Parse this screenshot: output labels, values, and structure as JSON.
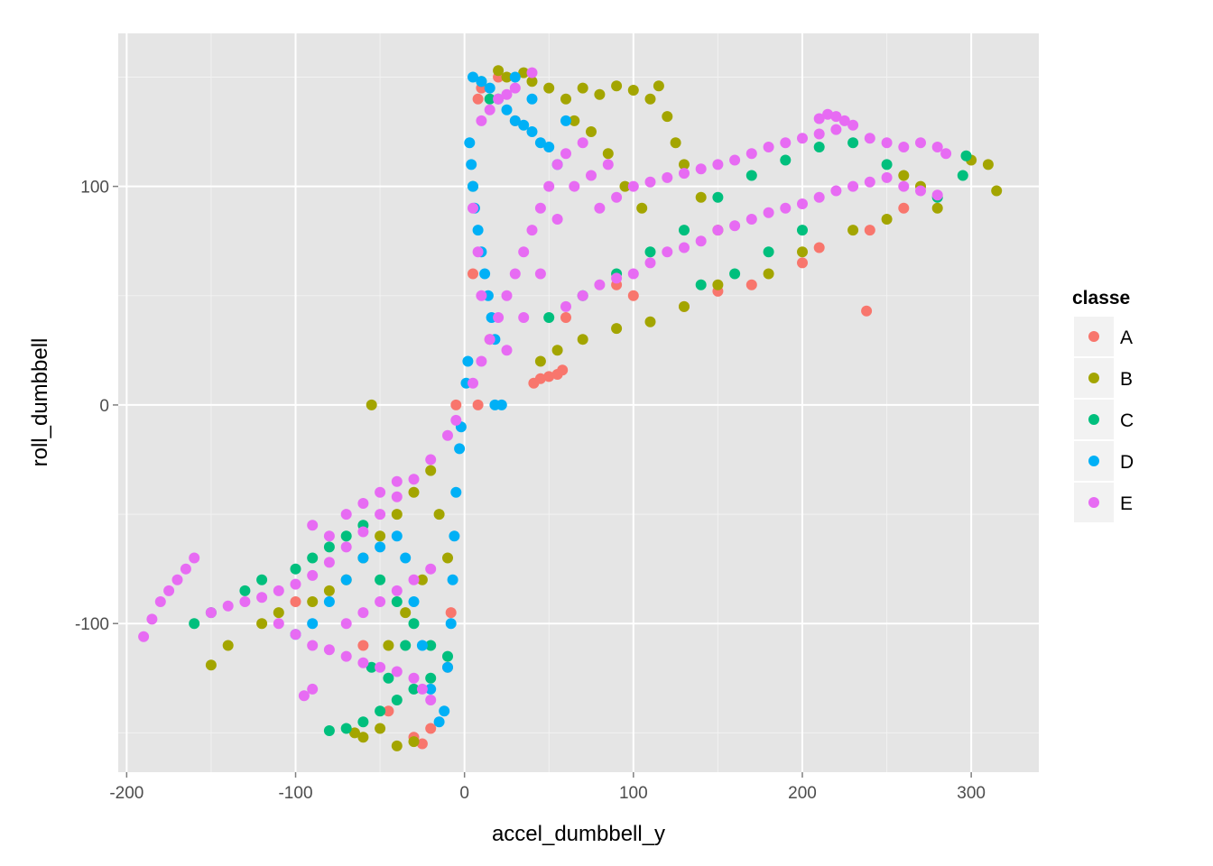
{
  "chart_data": {
    "type": "scatter",
    "title": "",
    "xlabel": "accel_dumbbell_y",
    "ylabel": "roll_dumbbell",
    "xlim": [
      -205,
      340
    ],
    "ylim": [
      -168,
      170
    ],
    "x_ticks": [
      -200,
      -100,
      0,
      100,
      200,
      300
    ],
    "x_tick_labels": [
      "-200",
      "-100",
      "0",
      "100",
      "200",
      "300"
    ],
    "y_ticks": [
      -100,
      0,
      100
    ],
    "y_tick_labels": [
      "-100",
      "0",
      "100"
    ],
    "grid": true,
    "legend": {
      "title": "classe",
      "position": "right",
      "entries": [
        {
          "label": "A",
          "color": "#F8766D"
        },
        {
          "label": "B",
          "color": "#A3A500"
        },
        {
          "label": "C",
          "color": "#00BF7D"
        },
        {
          "label": "D",
          "color": "#00B0F6"
        },
        {
          "label": "E",
          "color": "#E76BF3"
        }
      ]
    },
    "colors": {
      "panel_background": "#E5E5E5",
      "grid_major": "#FFFFFF",
      "grid_minor": "#F2F2F2"
    },
    "series": [
      {
        "name": "A",
        "color": "#F8766D",
        "points": [
          [
            238,
            43
          ],
          [
            41,
            10
          ],
          [
            45,
            12
          ],
          [
            50,
            13
          ],
          [
            55,
            14
          ],
          [
            58,
            16
          ],
          [
            10,
            145
          ],
          [
            8,
            140
          ],
          [
            20,
            150
          ],
          [
            30,
            130
          ],
          [
            5,
            60
          ],
          [
            15,
            30
          ],
          [
            -5,
            0
          ],
          [
            8,
            0
          ],
          [
            -25,
            -155
          ],
          [
            -30,
            -152
          ],
          [
            -20,
            -148
          ],
          [
            -45,
            -140
          ],
          [
            -10,
            -120
          ],
          [
            -8,
            -95
          ],
          [
            -60,
            -110
          ],
          [
            -100,
            -90
          ],
          [
            60,
            40
          ],
          [
            90,
            55
          ],
          [
            130,
            45
          ],
          [
            170,
            55
          ],
          [
            210,
            72
          ],
          [
            240,
            80
          ],
          [
            260,
            90
          ],
          [
            100,
            50
          ],
          [
            150,
            52
          ],
          [
            200,
            65
          ]
        ]
      },
      {
        "name": "B",
        "color": "#A3A500",
        "points": [
          [
            -55,
            0
          ],
          [
            315,
            98
          ],
          [
            310,
            110
          ],
          [
            300,
            112
          ],
          [
            280,
            90
          ],
          [
            270,
            100
          ],
          [
            260,
            105
          ],
          [
            250,
            85
          ],
          [
            230,
            80
          ],
          [
            200,
            70
          ],
          [
            180,
            60
          ],
          [
            150,
            55
          ],
          [
            130,
            45
          ],
          [
            110,
            38
          ],
          [
            90,
            35
          ],
          [
            70,
            30
          ],
          [
            55,
            25
          ],
          [
            45,
            20
          ],
          [
            60,
            140
          ],
          [
            70,
            145
          ],
          [
            80,
            142
          ],
          [
            90,
            146
          ],
          [
            100,
            144
          ],
          [
            110,
            140
          ],
          [
            115,
            146
          ],
          [
            120,
            132
          ],
          [
            125,
            120
          ],
          [
            130,
            110
          ],
          [
            140,
            95
          ],
          [
            150,
            80
          ],
          [
            20,
            153
          ],
          [
            25,
            150
          ],
          [
            35,
            152
          ],
          [
            40,
            148
          ],
          [
            50,
            145
          ],
          [
            65,
            130
          ],
          [
            75,
            125
          ],
          [
            85,
            115
          ],
          [
            95,
            100
          ],
          [
            105,
            90
          ],
          [
            -60,
            -152
          ],
          [
            -65,
            -150
          ],
          [
            -50,
            -148
          ],
          [
            -40,
            -156
          ],
          [
            -30,
            -154
          ],
          [
            -150,
            -119
          ],
          [
            -140,
            -110
          ],
          [
            -120,
            -100
          ],
          [
            -110,
            -95
          ],
          [
            -90,
            -90
          ],
          [
            -80,
            -85
          ],
          [
            -70,
            -80
          ],
          [
            -60,
            -70
          ],
          [
            -50,
            -60
          ],
          [
            -40,
            -50
          ],
          [
            -30,
            -40
          ],
          [
            -20,
            -30
          ],
          [
            -15,
            -50
          ],
          [
            -10,
            -70
          ],
          [
            -25,
            -80
          ],
          [
            -35,
            -95
          ],
          [
            -45,
            -110
          ]
        ]
      },
      {
        "name": "C",
        "color": "#00BF7D",
        "points": [
          [
            297,
            114
          ],
          [
            295,
            105
          ],
          [
            280,
            95
          ],
          [
            250,
            110
          ],
          [
            230,
            120
          ],
          [
            210,
            118
          ],
          [
            190,
            112
          ],
          [
            170,
            105
          ],
          [
            150,
            95
          ],
          [
            130,
            80
          ],
          [
            110,
            70
          ],
          [
            90,
            60
          ],
          [
            70,
            50
          ],
          [
            50,
            40
          ],
          [
            200,
            80
          ],
          [
            180,
            70
          ],
          [
            160,
            60
          ],
          [
            140,
            55
          ],
          [
            -80,
            -149
          ],
          [
            -70,
            -148
          ],
          [
            -60,
            -145
          ],
          [
            -50,
            -140
          ],
          [
            -40,
            -135
          ],
          [
            -30,
            -130
          ],
          [
            -20,
            -125
          ],
          [
            -160,
            -100
          ],
          [
            -150,
            -95
          ],
          [
            -130,
            -85
          ],
          [
            -120,
            -80
          ],
          [
            -100,
            -75
          ],
          [
            -90,
            -70
          ],
          [
            -80,
            -65
          ],
          [
            -70,
            -60
          ],
          [
            -60,
            -55
          ],
          [
            -50,
            -80
          ],
          [
            -40,
            -90
          ],
          [
            -30,
            -100
          ],
          [
            -20,
            -110
          ],
          [
            -10,
            -115
          ],
          [
            -55,
            -120
          ],
          [
            -45,
            -125
          ],
          [
            -35,
            -110
          ],
          [
            10,
            148
          ],
          [
            15,
            140
          ],
          [
            5,
            100
          ]
        ]
      },
      {
        "name": "D",
        "color": "#00B0F6",
        "points": [
          [
            18,
            0
          ],
          [
            22,
            0
          ],
          [
            5,
            150
          ],
          [
            10,
            148
          ],
          [
            15,
            145
          ],
          [
            20,
            140
          ],
          [
            25,
            135
          ],
          [
            30,
            130
          ],
          [
            35,
            128
          ],
          [
            40,
            125
          ],
          [
            45,
            120
          ],
          [
            50,
            118
          ],
          [
            55,
            110
          ],
          [
            3,
            120
          ],
          [
            4,
            110
          ],
          [
            5,
            100
          ],
          [
            6,
            90
          ],
          [
            8,
            80
          ],
          [
            10,
            70
          ],
          [
            12,
            60
          ],
          [
            14,
            50
          ],
          [
            16,
            40
          ],
          [
            18,
            30
          ],
          [
            2,
            20
          ],
          [
            1,
            10
          ],
          [
            -2,
            -10
          ],
          [
            -3,
            -20
          ],
          [
            -5,
            -40
          ],
          [
            -6,
            -60
          ],
          [
            -7,
            -80
          ],
          [
            -8,
            -100
          ],
          [
            -10,
            -120
          ],
          [
            -12,
            -140
          ],
          [
            -15,
            -145
          ],
          [
            -20,
            -130
          ],
          [
            -25,
            -110
          ],
          [
            -30,
            -90
          ],
          [
            -35,
            -70
          ],
          [
            -40,
            -60
          ],
          [
            -50,
            -65
          ],
          [
            -60,
            -70
          ],
          [
            -70,
            -80
          ],
          [
            -80,
            -90
          ],
          [
            -90,
            -100
          ],
          [
            -100,
            -105
          ],
          [
            60,
            130
          ],
          [
            40,
            140
          ],
          [
            30,
            150
          ]
        ]
      },
      {
        "name": "E",
        "color": "#E76BF3",
        "points": [
          [
            -190,
            -106
          ],
          [
            -185,
            -98
          ],
          [
            -180,
            -90
          ],
          [
            -175,
            -85
          ],
          [
            -170,
            -80
          ],
          [
            -165,
            -75
          ],
          [
            -160,
            -70
          ],
          [
            -150,
            -95
          ],
          [
            -140,
            -92
          ],
          [
            -130,
            -90
          ],
          [
            -120,
            -88
          ],
          [
            -110,
            -85
          ],
          [
            -100,
            -82
          ],
          [
            -90,
            -78
          ],
          [
            -80,
            -72
          ],
          [
            -70,
            -65
          ],
          [
            -60,
            -58
          ],
          [
            -50,
            -50
          ],
          [
            -40,
            -42
          ],
          [
            -30,
            -34
          ],
          [
            -20,
            -25
          ],
          [
            -10,
            -14
          ],
          [
            -5,
            -7
          ],
          [
            -110,
            -100
          ],
          [
            -100,
            -105
          ],
          [
            -90,
            -110
          ],
          [
            -80,
            -112
          ],
          [
            -70,
            -115
          ],
          [
            -60,
            -118
          ],
          [
            -50,
            -120
          ],
          [
            -40,
            -122
          ],
          [
            -30,
            -125
          ],
          [
            -25,
            -130
          ],
          [
            -20,
            -135
          ],
          [
            -95,
            -133
          ],
          [
            -90,
            -130
          ],
          [
            -70,
            -100
          ],
          [
            -60,
            -95
          ],
          [
            -50,
            -90
          ],
          [
            -40,
            -85
          ],
          [
            -30,
            -80
          ],
          [
            -20,
            -75
          ],
          [
            -80,
            -60
          ],
          [
            -90,
            -55
          ],
          [
            -70,
            -50
          ],
          [
            -60,
            -45
          ],
          [
            -50,
            -40
          ],
          [
            -40,
            -35
          ],
          [
            5,
            10
          ],
          [
            10,
            20
          ],
          [
            15,
            30
          ],
          [
            20,
            40
          ],
          [
            25,
            50
          ],
          [
            30,
            60
          ],
          [
            35,
            70
          ],
          [
            40,
            80
          ],
          [
            45,
            90
          ],
          [
            50,
            100
          ],
          [
            55,
            110
          ],
          [
            60,
            115
          ],
          [
            10,
            130
          ],
          [
            15,
            135
          ],
          [
            20,
            140
          ],
          [
            25,
            142
          ],
          [
            30,
            145
          ],
          [
            40,
            152
          ],
          [
            5,
            90
          ],
          [
            8,
            70
          ],
          [
            10,
            50
          ],
          [
            60,
            45
          ],
          [
            70,
            50
          ],
          [
            80,
            55
          ],
          [
            90,
            58
          ],
          [
            100,
            60
          ],
          [
            110,
            65
          ],
          [
            120,
            70
          ],
          [
            130,
            72
          ],
          [
            140,
            75
          ],
          [
            150,
            80
          ],
          [
            160,
            82
          ],
          [
            170,
            85
          ],
          [
            180,
            88
          ],
          [
            190,
            90
          ],
          [
            200,
            92
          ],
          [
            210,
            95
          ],
          [
            220,
            98
          ],
          [
            230,
            100
          ],
          [
            240,
            102
          ],
          [
            250,
            104
          ],
          [
            260,
            100
          ],
          [
            270,
            98
          ],
          [
            280,
            96
          ],
          [
            80,
            90
          ],
          [
            90,
            95
          ],
          [
            100,
            100
          ],
          [
            110,
            102
          ],
          [
            120,
            104
          ],
          [
            130,
            106
          ],
          [
            140,
            108
          ],
          [
            150,
            110
          ],
          [
            160,
            112
          ],
          [
            170,
            115
          ],
          [
            180,
            118
          ],
          [
            190,
            120
          ],
          [
            200,
            122
          ],
          [
            210,
            124
          ],
          [
            220,
            126
          ],
          [
            230,
            128
          ],
          [
            240,
            122
          ],
          [
            250,
            120
          ],
          [
            260,
            118
          ],
          [
            270,
            120
          ],
          [
            280,
            118
          ],
          [
            285,
            115
          ],
          [
            215,
            133
          ],
          [
            220,
            132
          ],
          [
            225,
            130
          ],
          [
            210,
            131
          ],
          [
            75,
            105
          ],
          [
            85,
            110
          ],
          [
            70,
            120
          ],
          [
            65,
            100
          ],
          [
            55,
            85
          ],
          [
            45,
            60
          ],
          [
            35,
            40
          ],
          [
            25,
            25
          ]
        ]
      }
    ]
  }
}
